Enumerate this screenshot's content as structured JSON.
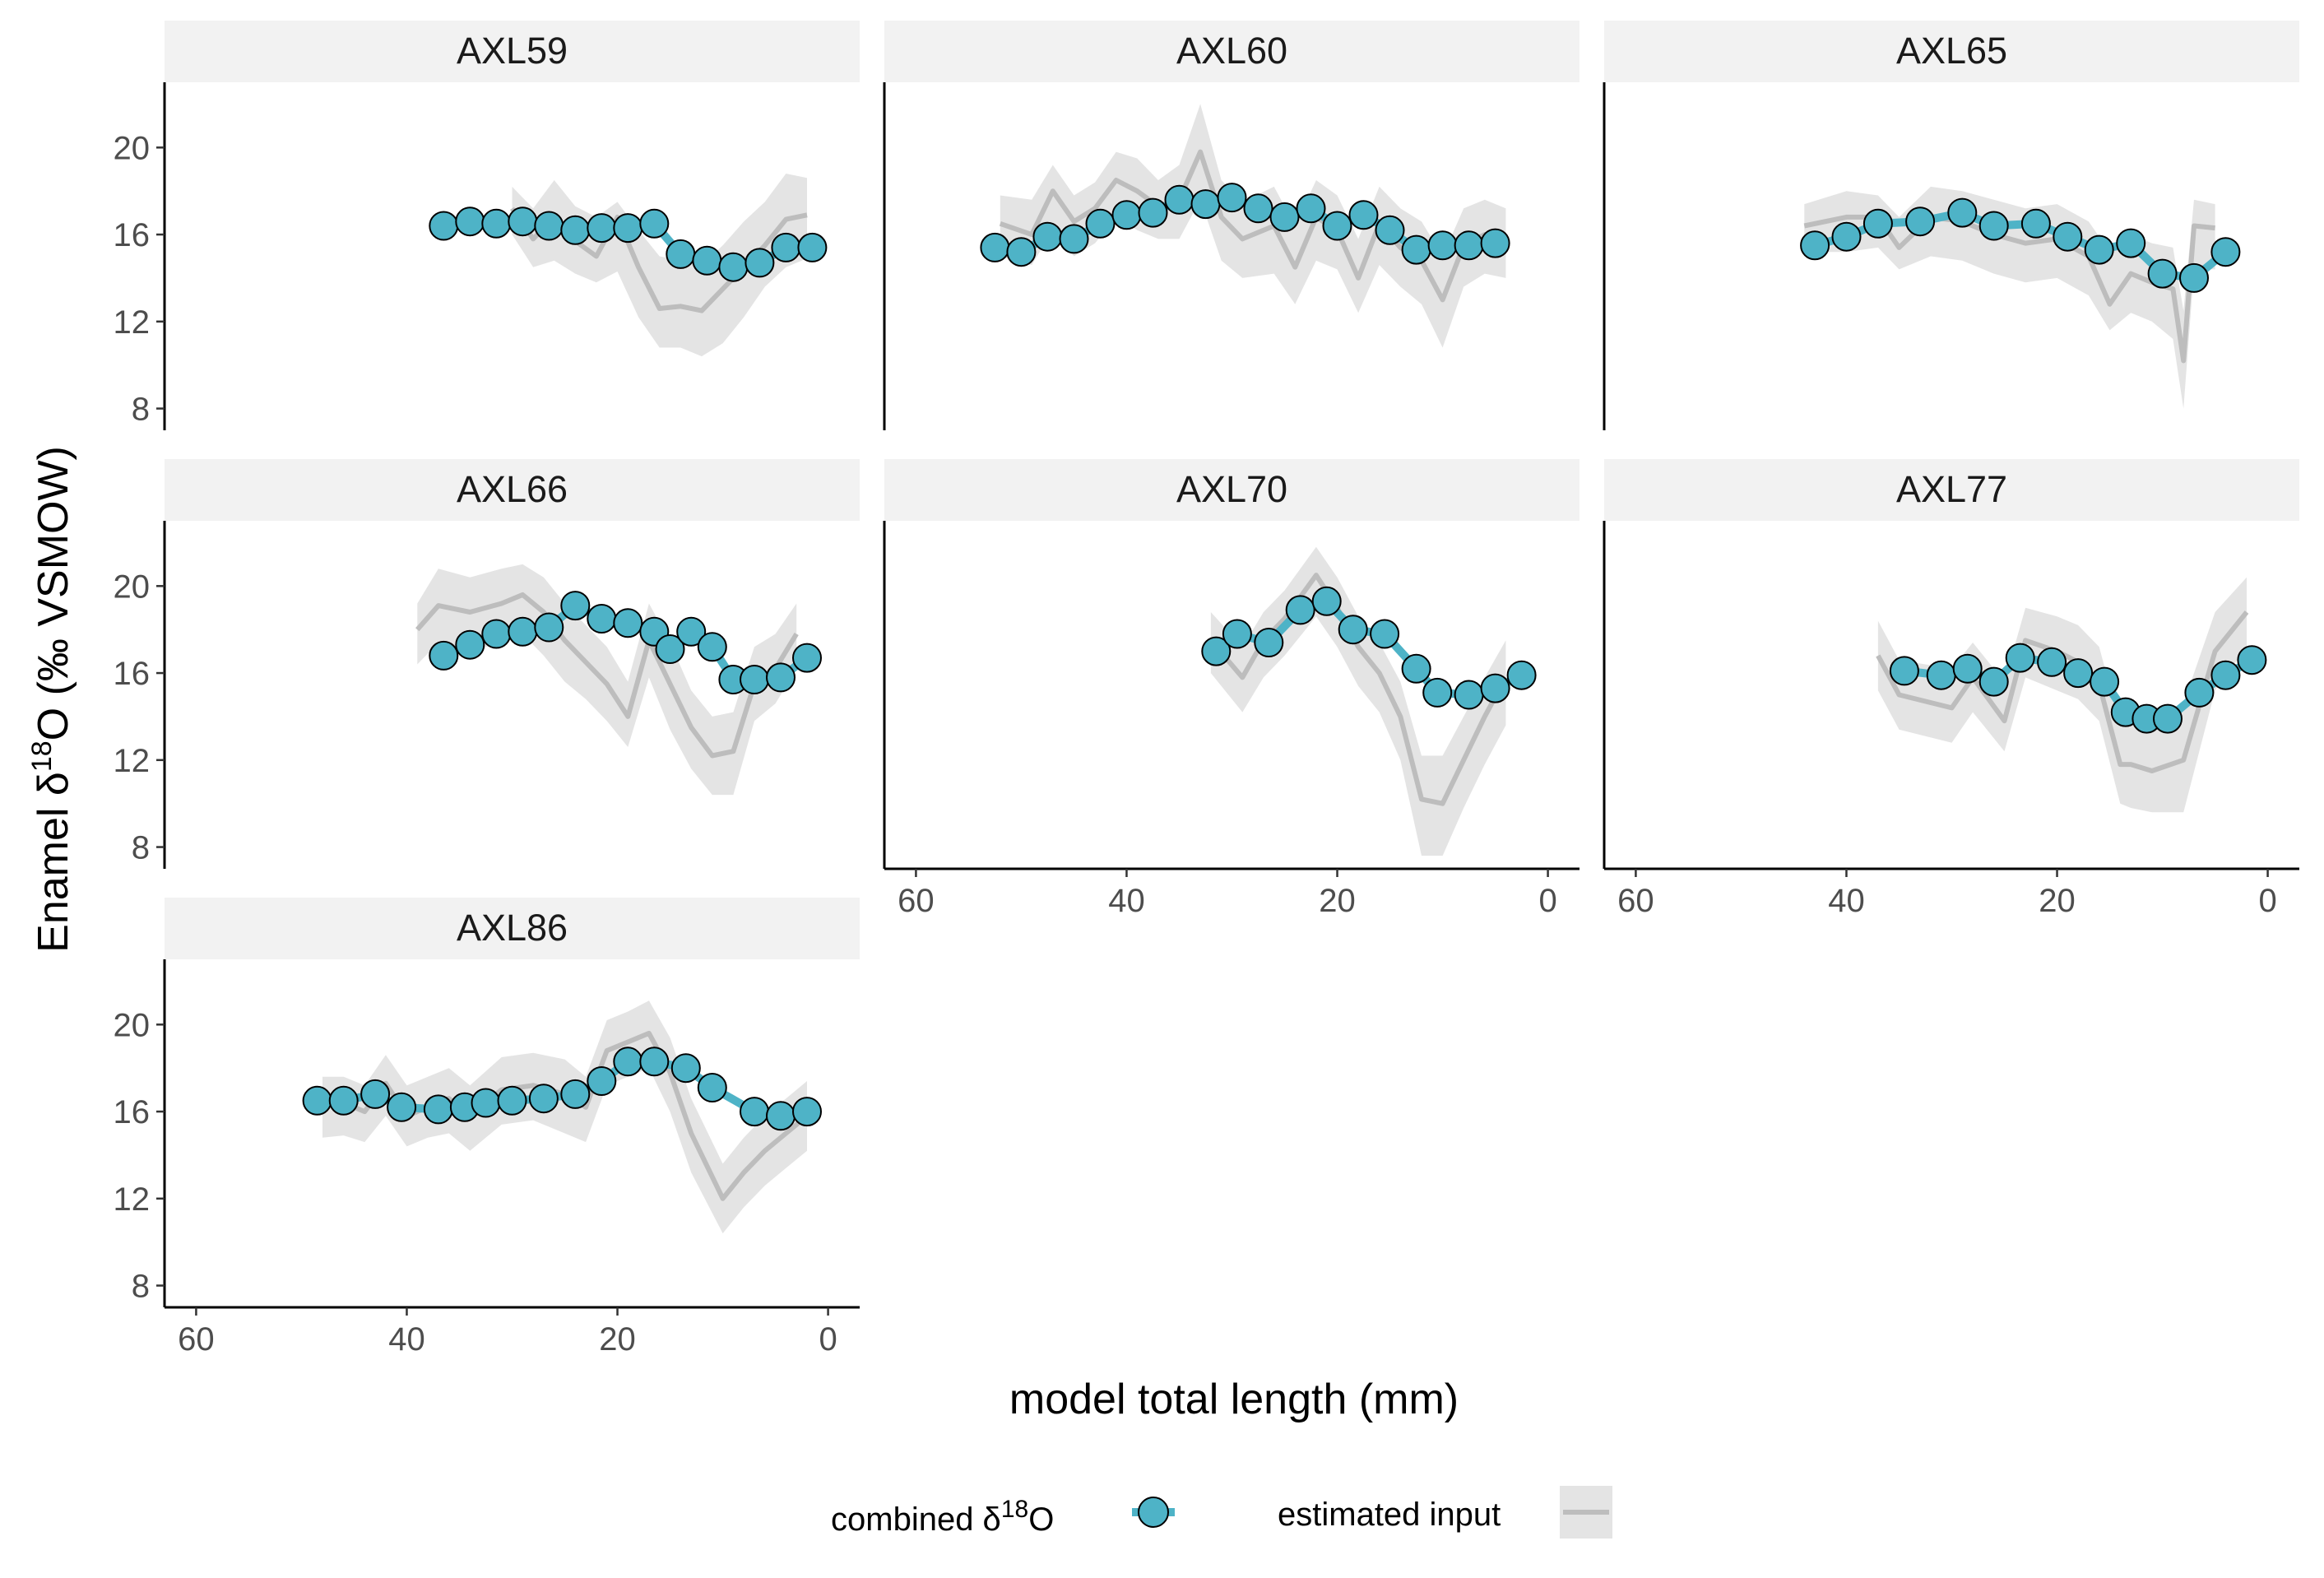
{
  "chart_data": {
    "type": "line",
    "xlabel": "model total length (mm)",
    "ylabel_parts": [
      "Enamel δ",
      "18",
      "O (‰ VSMOW)"
    ],
    "xlim": [
      63,
      -3
    ],
    "ylim": [
      7,
      23
    ],
    "x_ticks": [
      60,
      40,
      20,
      0
    ],
    "y_ticks": [
      8,
      12,
      16,
      20
    ],
    "colors": {
      "point_fill": "#4eb3c7",
      "point_stroke": "#000000",
      "estimate_line": "#bdbdbd",
      "estimate_band": "#d9d9d9",
      "strip_bg": "#f2f2f2"
    },
    "legend": {
      "combined_label_parts": [
        "combined δ",
        "18",
        "O"
      ],
      "estimated_label": "estimated input"
    },
    "panels": [
      {
        "id": "AXL59",
        "combined": {
          "x": [
            36.5,
            34,
            31.5,
            29,
            26.5,
            24,
            21.5,
            19,
            16.5,
            14,
            11.5,
            9,
            6.5,
            4,
            1.5
          ],
          "y": [
            16.4,
            16.6,
            16.5,
            16.6,
            16.4,
            16.2,
            16.3,
            16.3,
            16.5,
            15.1,
            14.8,
            14.5,
            14.7,
            15.4,
            15.4
          ]
        },
        "estimate": {
          "x": [
            30,
            28,
            26,
            24,
            22,
            20,
            18,
            16,
            14,
            12,
            10,
            8,
            6,
            4,
            2
          ],
          "y": [
            17.2,
            15.8,
            16.8,
            15.7,
            15.0,
            16.8,
            14.5,
            12.6,
            12.7,
            12.5,
            13.5,
            14.5,
            15.5,
            16.7,
            16.9
          ],
          "lower": [
            16.0,
            14.5,
            14.8,
            14.2,
            13.8,
            14.3,
            12.2,
            10.8,
            10.8,
            10.4,
            11.0,
            12.2,
            13.6,
            14.5,
            14.9
          ],
          "upper": [
            18.2,
            17.2,
            18.5,
            17.3,
            16.8,
            17.5,
            16.2,
            15.0,
            14.8,
            14.6,
            15.5,
            16.6,
            17.5,
            18.8,
            18.6
          ]
        }
      },
      {
        "id": "AXL60",
        "combined": {
          "x": [
            52.5,
            50,
            47.5,
            45,
            42.5,
            40,
            37.5,
            35,
            32.5,
            30,
            27.5,
            25,
            22.5,
            20,
            17.5,
            15,
            12.5,
            10,
            7.5,
            5
          ],
          "y": [
            15.4,
            15.2,
            15.9,
            15.8,
            16.5,
            16.9,
            17.0,
            17.6,
            17.4,
            17.7,
            17.2,
            16.8,
            17.2,
            16.4,
            16.9,
            16.2,
            15.3,
            15.5,
            15.5,
            15.6
          ]
        },
        "estimate": {
          "x": [
            52,
            49,
            47,
            45,
            43,
            41,
            39,
            37,
            35,
            33,
            31,
            29,
            26,
            24,
            22,
            20,
            18,
            16,
            14,
            12,
            10,
            8,
            6,
            4
          ],
          "y": [
            16.5,
            16.0,
            18.0,
            16.6,
            17.2,
            18.5,
            18.0,
            17.3,
            17.6,
            19.8,
            16.8,
            15.8,
            16.4,
            14.5,
            16.8,
            16.2,
            14.0,
            16.5,
            15.4,
            14.8,
            13.0,
            15.5,
            16.0,
            15.8
          ],
          "lower": [
            15.0,
            14.6,
            16.2,
            15.0,
            15.6,
            16.8,
            16.2,
            15.8,
            15.8,
            17.6,
            14.8,
            14.0,
            14.2,
            12.8,
            14.8,
            14.4,
            12.4,
            14.6,
            13.6,
            12.8,
            10.8,
            13.6,
            14.2,
            14.0
          ],
          "upper": [
            17.8,
            17.6,
            19.2,
            17.8,
            18.4,
            19.8,
            19.5,
            18.5,
            19.2,
            22.0,
            18.5,
            17.5,
            18.2,
            16.4,
            18.5,
            17.8,
            15.8,
            18.2,
            17.2,
            16.6,
            15.0,
            17.2,
            17.6,
            17.2
          ]
        }
      },
      {
        "id": "AXL65",
        "combined": {
          "x": [
            43,
            40,
            37,
            33,
            29,
            26,
            22,
            19,
            16,
            13,
            10,
            7,
            4
          ],
          "y": [
            15.5,
            15.9,
            16.5,
            16.6,
            17.0,
            16.4,
            16.5,
            15.9,
            15.3,
            15.6,
            14.2,
            14.0,
            15.2
          ]
        },
        "estimate": {
          "x": [
            44,
            40,
            37,
            35,
            32,
            29,
            26,
            23,
            20,
            17,
            15,
            13,
            11,
            9,
            8,
            7,
            5
          ],
          "y": [
            16.4,
            16.8,
            16.8,
            15.4,
            16.8,
            16.6,
            16.0,
            15.6,
            15.8,
            15.0,
            12.8,
            14.2,
            13.8,
            13.5,
            10.2,
            16.4,
            16.3
          ],
          "lower": [
            15.2,
            15.2,
            15.4,
            14.4,
            15.0,
            14.8,
            14.2,
            13.8,
            14.0,
            13.2,
            11.6,
            12.4,
            12.0,
            11.2,
            8.0,
            14.4,
            14.4
          ],
          "upper": [
            17.4,
            18.0,
            17.8,
            16.8,
            18.2,
            18.0,
            17.6,
            17.2,
            17.4,
            16.6,
            15.2,
            16.0,
            15.6,
            15.4,
            12.5,
            17.6,
            17.4
          ]
        }
      },
      {
        "id": "AXL66",
        "combined": {
          "x": [
            36.5,
            34,
            31.5,
            29,
            26.5,
            24,
            21.5,
            19,
            16.5,
            15,
            13,
            11,
            9,
            7,
            4.5,
            2
          ],
          "y": [
            16.8,
            17.3,
            17.8,
            17.9,
            18.1,
            19.1,
            18.5,
            18.3,
            17.9,
            17.1,
            17.9,
            17.2,
            15.7,
            15.7,
            15.8,
            16.7
          ]
        },
        "estimate": {
          "x": [
            39,
            37,
            34,
            31,
            29,
            27,
            25,
            23,
            21,
            19,
            17,
            15,
            13,
            11,
            9,
            7,
            5,
            3
          ],
          "y": [
            18.0,
            19.1,
            18.8,
            19.2,
            19.6,
            18.8,
            17.5,
            16.5,
            15.5,
            14.0,
            17.5,
            15.5,
            13.5,
            12.2,
            12.4,
            15.5,
            16.2,
            17.8
          ],
          "lower": [
            16.4,
            17.4,
            17.0,
            17.4,
            17.8,
            16.8,
            15.6,
            14.8,
            13.8,
            12.6,
            15.8,
            13.4,
            11.6,
            10.4,
            10.4,
            13.8,
            14.6,
            16.2
          ],
          "upper": [
            19.2,
            20.8,
            20.4,
            20.8,
            21.0,
            20.4,
            19.2,
            18.2,
            17.2,
            15.6,
            19.2,
            17.4,
            15.2,
            14.0,
            14.2,
            17.2,
            17.8,
            19.2
          ]
        }
      },
      {
        "id": "AXL70",
        "combined": {
          "x": [
            31.5,
            29.5,
            26.5,
            23.5,
            21,
            18.5,
            15.5,
            12.5,
            10.5,
            7.5,
            5,
            2.5
          ],
          "y": [
            17.0,
            17.8,
            17.4,
            18.9,
            19.3,
            18.0,
            17.8,
            16.2,
            15.1,
            15.0,
            15.3,
            15.9
          ]
        },
        "estimate": {
          "x": [
            32,
            29,
            27,
            25,
            22,
            20,
            18,
            16,
            14,
            12,
            10,
            8,
            6,
            4
          ],
          "y": [
            17.5,
            15.8,
            17.5,
            18.5,
            20.5,
            19.0,
            17.2,
            16.0,
            14.0,
            10.2,
            10.0,
            12.0,
            14.0,
            15.8
          ],
          "lower": [
            16.0,
            14.2,
            15.8,
            16.8,
            18.6,
            17.2,
            15.4,
            14.2,
            12.0,
            7.6,
            7.6,
            9.8,
            11.8,
            13.6
          ],
          "upper": [
            18.8,
            17.2,
            18.8,
            19.8,
            21.8,
            20.4,
            18.6,
            17.4,
            15.6,
            12.2,
            12.2,
            14.0,
            15.8,
            17.5
          ]
        }
      },
      {
        "id": "AXL77",
        "combined": {
          "x": [
            34.5,
            31,
            28.5,
            26,
            23.5,
            20.5,
            18,
            15.5,
            13.5,
            11.5,
            9.5,
            6.5,
            4,
            1.5
          ],
          "y": [
            16.1,
            15.9,
            16.2,
            15.6,
            16.7,
            16.5,
            16.0,
            15.6,
            14.2,
            13.9,
            13.9,
            15.1,
            15.9,
            16.6
          ]
        },
        "estimate": {
          "x": [
            37,
            35,
            30,
            28,
            25,
            23,
            20,
            18,
            16,
            14,
            13,
            11,
            8,
            5,
            2
          ],
          "y": [
            16.8,
            15.0,
            14.4,
            15.8,
            13.8,
            17.5,
            17.0,
            16.5,
            15.5,
            11.8,
            11.8,
            11.5,
            12.0,
            17.0,
            18.8
          ],
          "lower": [
            15.2,
            13.4,
            12.8,
            14.2,
            12.4,
            15.8,
            15.2,
            14.8,
            13.8,
            10.0,
            9.8,
            9.6,
            9.6,
            15.2,
            17.2
          ],
          "upper": [
            18.4,
            16.6,
            16.2,
            17.4,
            15.6,
            19.0,
            18.6,
            18.2,
            17.2,
            13.6,
            13.8,
            13.6,
            14.6,
            18.8,
            20.4
          ]
        }
      },
      {
        "id": "AXL86",
        "combined": {
          "x": [
            48.5,
            46,
            43,
            40.5,
            37,
            34.5,
            32.5,
            30,
            27,
            24,
            21.5,
            19,
            16.5,
            13.5,
            11,
            7,
            4.5,
            2
          ],
          "y": [
            16.5,
            16.5,
            16.8,
            16.2,
            16.1,
            16.2,
            16.4,
            16.5,
            16.6,
            16.8,
            17.4,
            18.3,
            18.3,
            18.0,
            17.1,
            16.0,
            15.8,
            16.0
          ]
        },
        "estimate": {
          "x": [
            48,
            46,
            44,
            42,
            40,
            38,
            36,
            34,
            31,
            28,
            25,
            23,
            21,
            19,
            17,
            15,
            13,
            10,
            8,
            6,
            4,
            2
          ],
          "y": [
            16.3,
            16.4,
            16.0,
            17.3,
            15.8,
            16.2,
            16.6,
            15.8,
            17.0,
            17.2,
            16.8,
            16.2,
            18.8,
            19.2,
            19.6,
            17.8,
            15.0,
            12.0,
            13.2,
            14.2,
            15.0,
            15.8
          ],
          "lower": [
            14.8,
            14.9,
            14.6,
            15.8,
            14.4,
            14.8,
            15.0,
            14.2,
            15.4,
            15.6,
            15.0,
            14.6,
            17.2,
            17.6,
            18.0,
            16.0,
            13.2,
            10.4,
            11.6,
            12.6,
            13.4,
            14.2
          ],
          "upper": [
            17.6,
            17.6,
            17.2,
            18.6,
            17.2,
            17.6,
            18.0,
            17.2,
            18.5,
            18.7,
            18.4,
            17.6,
            20.2,
            20.6,
            21.1,
            19.4,
            16.6,
            13.6,
            14.8,
            15.8,
            16.6,
            17.4
          ]
        }
      }
    ]
  }
}
